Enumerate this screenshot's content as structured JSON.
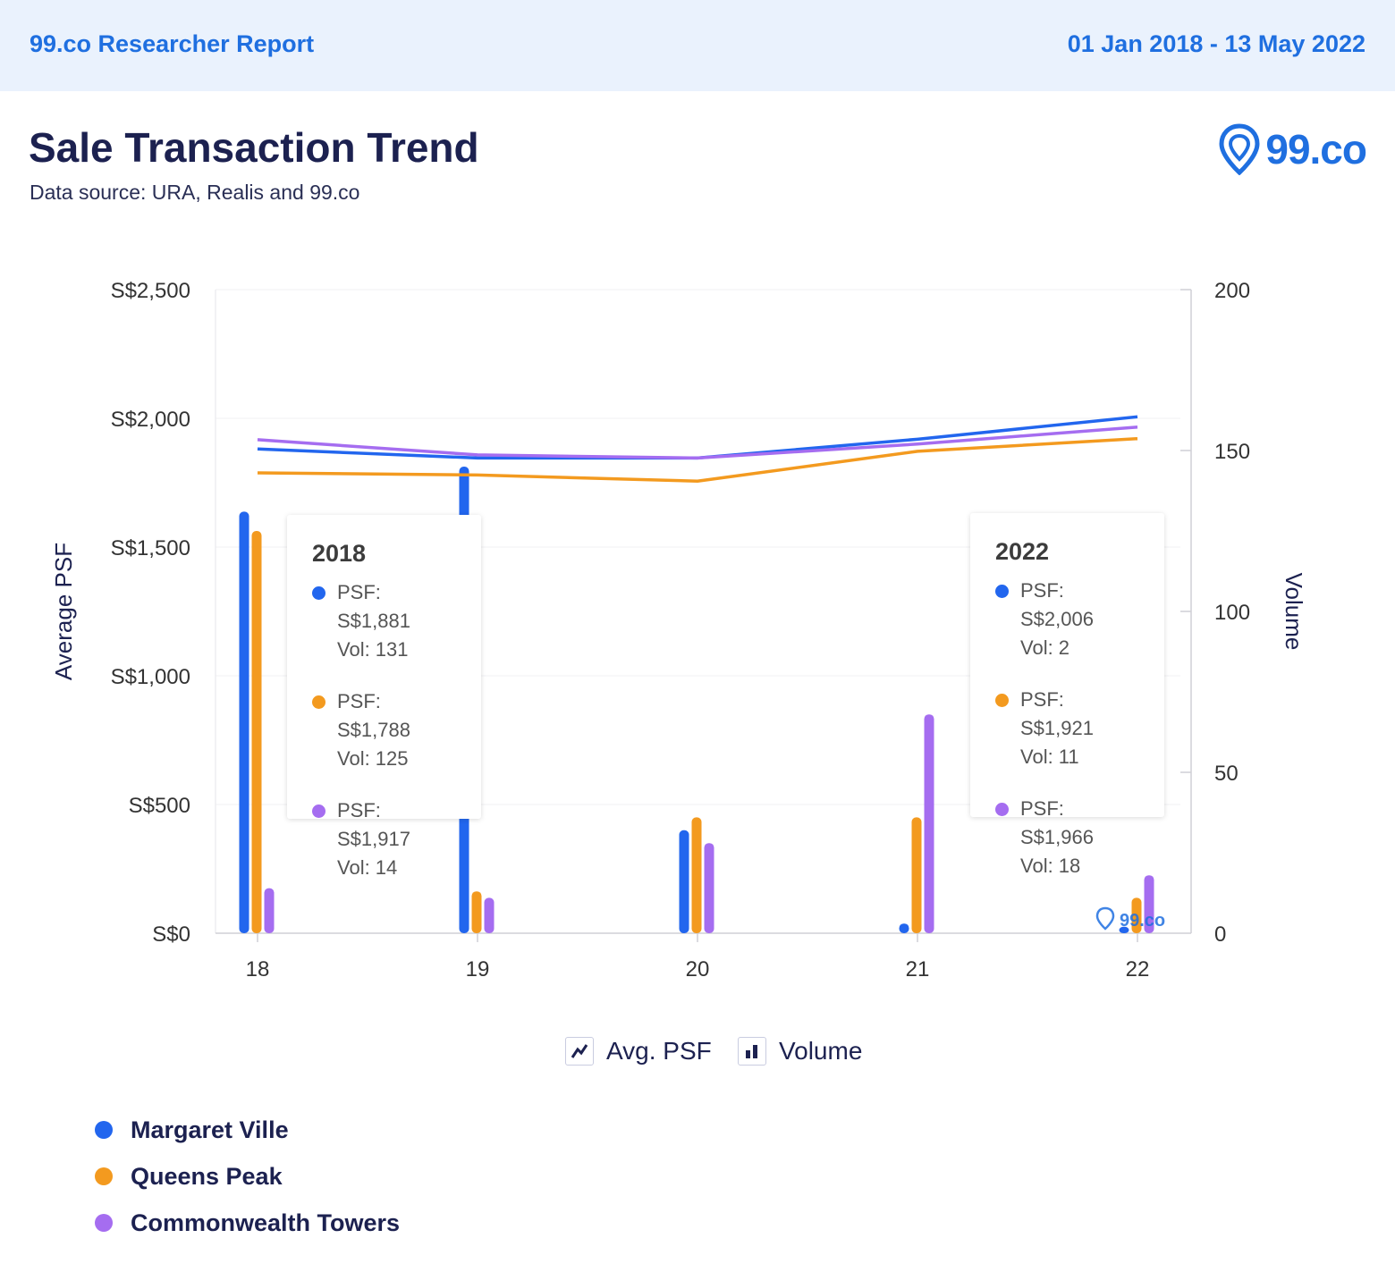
{
  "header": {
    "report_label": "99.co Researcher Report",
    "date_range": "01 Jan 2018 - 13 May 2022"
  },
  "title": "Sale Transaction Trend",
  "subtitle": "Data source: URA, Realis and 99.co",
  "brand": {
    "name": "99.co",
    "icon": "map-pin-icon"
  },
  "chart_data": {
    "type": "line+bar",
    "categories": [
      "18",
      "19",
      "20",
      "21",
      "22"
    ],
    "ylabel": "Average PSF",
    "y2label": "Volume",
    "ylim": [
      0,
      2500
    ],
    "y2lim": [
      0,
      200
    ],
    "yticks": [
      "S$0",
      "S$500",
      "S$1,000",
      "S$1,500",
      "S$2,000",
      "S$2,500"
    ],
    "y2ticks": [
      "0",
      "50",
      "100",
      "150",
      "200"
    ],
    "grid": true,
    "series": [
      {
        "name": "Margaret Ville",
        "color": "#2266ee",
        "psf": [
          1881,
          1846,
          1846,
          1919,
          2006
        ],
        "volume": [
          131,
          145,
          32,
          3,
          2
        ]
      },
      {
        "name": "Queens Peak",
        "color": "#f39a1f",
        "psf": [
          1788,
          1780,
          1756,
          1872,
          1921
        ],
        "volume": [
          125,
          13,
          36,
          36,
          11
        ]
      },
      {
        "name": "Commonwealth Towers",
        "color": "#a56df0",
        "psf": [
          1917,
          1858,
          1846,
          1900,
          1966
        ],
        "volume": [
          14,
          11,
          28,
          68,
          18
        ]
      }
    ]
  },
  "tooltips": [
    {
      "title": "2018",
      "rows": [
        {
          "psf": "PSF: S$1,881",
          "vol": "Vol: 131",
          "color": "#2266ee"
        },
        {
          "psf": "PSF: S$1,788",
          "vol": "Vol: 125",
          "color": "#f39a1f"
        },
        {
          "psf": "PSF: S$1,917",
          "vol": "Vol: 14",
          "color": "#a56df0"
        }
      ]
    },
    {
      "title": "2022",
      "rows": [
        {
          "psf": "PSF: S$2,006",
          "vol": "Vol: 2",
          "color": "#2266ee"
        },
        {
          "psf": "PSF: S$1,921",
          "vol": "Vol: 11",
          "color": "#f39a1f"
        },
        {
          "psf": "PSF: S$1,966",
          "vol": "Vol: 18",
          "color": "#a56df0"
        }
      ]
    }
  ],
  "toggles": {
    "avg_psf": {
      "label": "Avg. PSF",
      "icon": "line-chart-icon"
    },
    "volume": {
      "label": "Volume",
      "icon": "bar-chart-icon"
    }
  },
  "legend": [
    {
      "label": "Margaret Ville",
      "color": "#2266ee"
    },
    {
      "label": "Queens Peak",
      "color": "#f39a1f"
    },
    {
      "label": "Commonwealth Towers",
      "color": "#a56df0"
    }
  ],
  "watermark": "99.co"
}
